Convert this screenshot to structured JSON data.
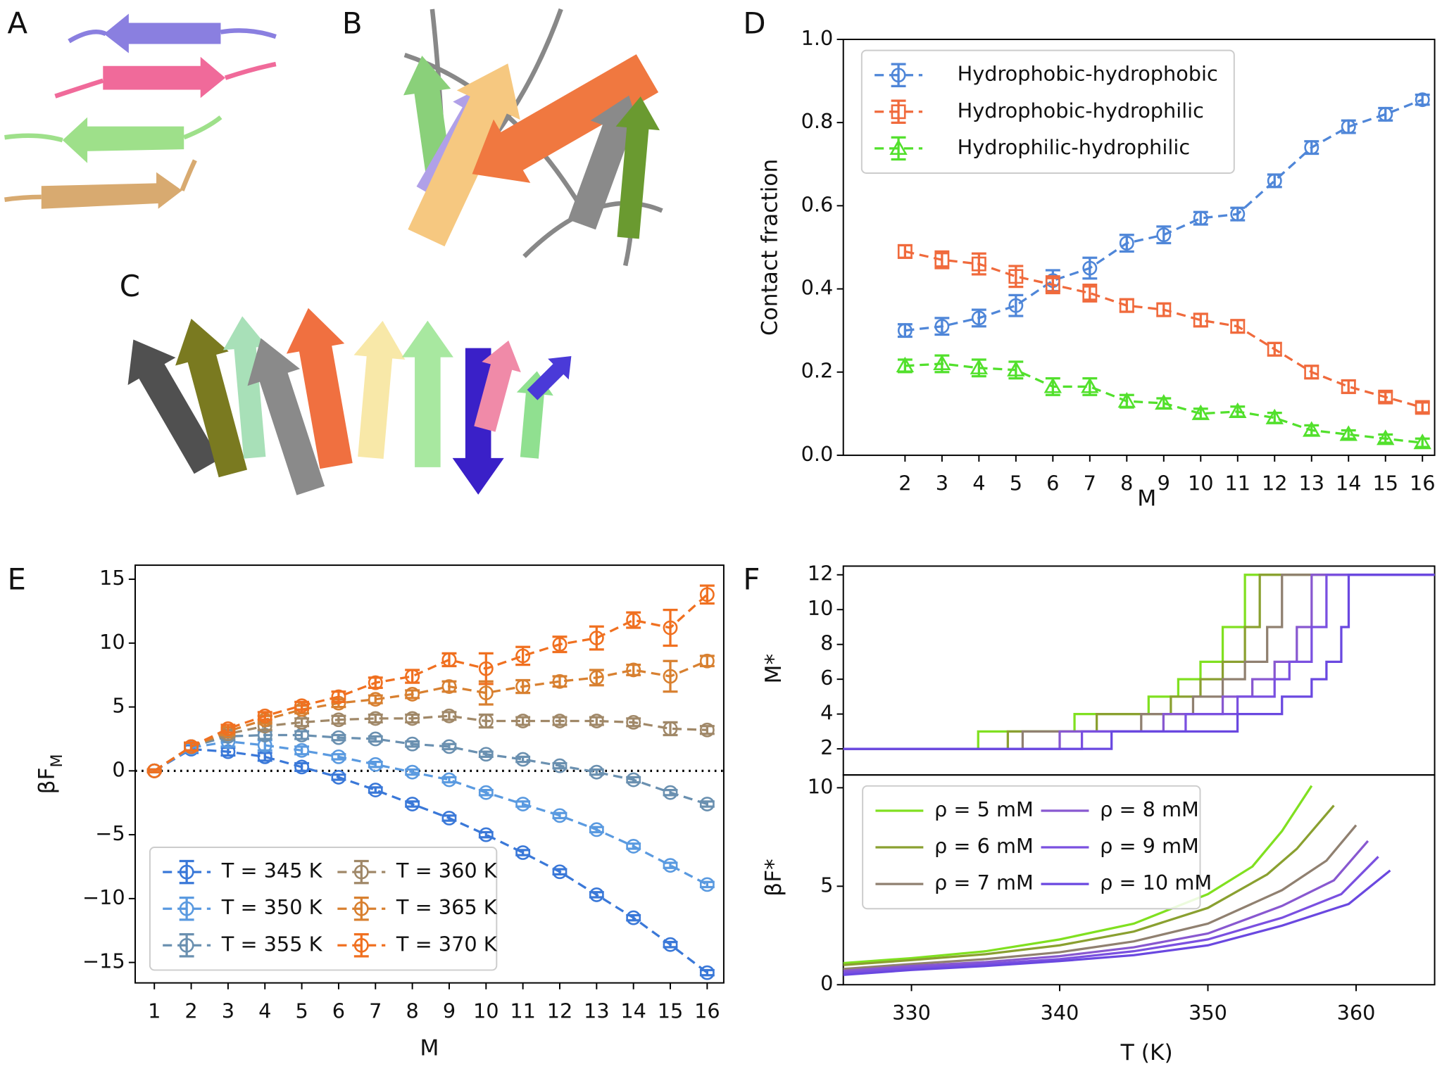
{
  "images": [
    {
      "panel": "A"
    },
    {
      "panel": "B"
    },
    {
      "panel": "C"
    }
  ],
  "chart_data": [
    {
      "type": "line",
      "panel": "D",
      "ylabel": "Contact fraction",
      "xlabel": "M",
      "x": [
        2,
        3,
        4,
        5,
        6,
        7,
        8,
        9,
        10,
        11,
        12,
        13,
        14,
        15,
        16
      ],
      "xlim": [
        0.33,
        16.33
      ],
      "xticks": [
        2,
        3,
        4,
        5,
        6,
        7,
        8,
        9,
        10,
        11,
        12,
        13,
        14,
        15,
        16
      ],
      "ylim": [
        0,
        1
      ],
      "yticks": [
        {
          "value": 0,
          "label": "0.0"
        },
        0.2,
        0.4,
        0.6,
        0.8,
        {
          "value": 1,
          "label": "1.0"
        }
      ],
      "legend": "upper left",
      "legend_columns": 1,
      "linestyle": "dashed",
      "series": [
        {
          "name": "Hydrophobic-hydrophobic",
          "color": "#4f86d8",
          "marker": "circle",
          "values": [
            0.3,
            0.31,
            0.33,
            0.36,
            0.42,
            0.45,
            0.51,
            0.53,
            0.57,
            0.58,
            0.66,
            0.74,
            0.79,
            0.82,
            0.855
          ],
          "errors": [
            0.015,
            0.02,
            0.02,
            0.025,
            0.025,
            0.025,
            0.02,
            0.02,
            0.015,
            0.015,
            0.015,
            0.015,
            0.015,
            0.015,
            0.012
          ]
        },
        {
          "name": "Hydrophobic-hydrophilic",
          "color": "#f06a3c",
          "marker": "square",
          "values": [
            0.49,
            0.47,
            0.46,
            0.43,
            0.41,
            0.39,
            0.36,
            0.35,
            0.325,
            0.31,
            0.255,
            0.2,
            0.165,
            0.14,
            0.115
          ],
          "errors": [
            0.015,
            0.02,
            0.025,
            0.025,
            0.02,
            0.02,
            0.015,
            0.015,
            0.015,
            0.015,
            0.015,
            0.015,
            0.015,
            0.012,
            0.012
          ]
        },
        {
          "name": "Hydrophilic-hydrophilic",
          "color": "#52e02c",
          "marker": "triangle",
          "values": [
            0.215,
            0.22,
            0.21,
            0.205,
            0.165,
            0.165,
            0.13,
            0.125,
            0.1,
            0.105,
            0.09,
            0.06,
            0.05,
            0.04,
            0.03
          ],
          "errors": [
            0.015,
            0.02,
            0.02,
            0.02,
            0.02,
            0.02,
            0.015,
            0.012,
            0.012,
            0.012,
            0.012,
            0.012,
            0.01,
            0.01,
            0.01
          ]
        }
      ]
    },
    {
      "type": "line",
      "panel": "E",
      "ylabel": "βF",
      "ylabel_subscript": "M",
      "xlabel": "M",
      "x": [
        1,
        2,
        3,
        4,
        5,
        6,
        7,
        8,
        9,
        10,
        11,
        12,
        13,
        14,
        15,
        16
      ],
      "xlim": [
        0.48,
        16.45
      ],
      "xticks": [
        1,
        2,
        3,
        4,
        5,
        6,
        7,
        8,
        9,
        10,
        11,
        12,
        13,
        14,
        15,
        16
      ],
      "ylim": [
        -16.6,
        16.1
      ],
      "yticks": [
        {
          "value": -15,
          "label": "−15"
        },
        {
          "value": -10,
          "label": "−10"
        },
        {
          "value": -5,
          "label": "−5"
        },
        0,
        5,
        10,
        15
      ],
      "reference_line": 0,
      "legend": "lower left",
      "legend_columns": 2,
      "linestyle": "dashed",
      "series": [
        {
          "name": "T = 345 K",
          "color": "#3a78d8",
          "marker": "circle",
          "values": [
            0,
            1.7,
            1.5,
            1.1,
            0.3,
            -0.5,
            -1.5,
            -2.6,
            -3.7,
            -5.0,
            -6.4,
            -7.9,
            -9.7,
            -11.5,
            -13.6,
            -15.8
          ],
          "errors": [
            0.1,
            0.3,
            0.3,
            0.3,
            0.3,
            0.2,
            0.2,
            0.2,
            0.2,
            0.2,
            0.2,
            0.2,
            0.2,
            0.2,
            0.2,
            0.2
          ]
        },
        {
          "name": "T = 350 K",
          "color": "#5a9ae0",
          "marker": "circle",
          "values": [
            0,
            1.8,
            2.3,
            2.0,
            1.6,
            1.1,
            0.5,
            -0.1,
            -0.7,
            -1.7,
            -2.6,
            -3.5,
            -4.6,
            -5.9,
            -7.4,
            -8.9
          ],
          "errors": [
            0.1,
            0.3,
            0.4,
            0.4,
            0.3,
            0.2,
            0.2,
            0.2,
            0.2,
            0.2,
            0.2,
            0.2,
            0.2,
            0.2,
            0.2,
            0.2
          ]
        },
        {
          "name": "T = 355 K",
          "color": "#6a90b0",
          "marker": "circle",
          "values": [
            0,
            1.9,
            2.7,
            2.8,
            2.8,
            2.6,
            2.5,
            2.1,
            1.9,
            1.3,
            0.9,
            0.4,
            -0.1,
            -0.7,
            -1.7,
            -2.6
          ],
          "errors": [
            0.1,
            0.3,
            0.3,
            0.3,
            0.3,
            0.2,
            0.2,
            0.2,
            0.2,
            0.2,
            0.2,
            0.2,
            0.2,
            0.2,
            0.2,
            0.2
          ]
        },
        {
          "name": "T = 360 K",
          "color": "#a08868",
          "marker": "circle",
          "values": [
            0,
            1.9,
            2.9,
            3.5,
            3.8,
            4.0,
            4.1,
            4.1,
            4.3,
            3.9,
            3.9,
            3.9,
            3.9,
            3.8,
            3.3,
            3.2
          ],
          "errors": [
            0.1,
            0.3,
            0.3,
            0.3,
            0.3,
            0.3,
            0.3,
            0.3,
            0.3,
            0.5,
            0.3,
            0.3,
            0.3,
            0.3,
            0.5,
            0.3
          ]
        },
        {
          "name": "T = 365 K",
          "color": "#d88030",
          "marker": "circle",
          "values": [
            0,
            1.9,
            3.1,
            4.0,
            4.8,
            5.3,
            5.6,
            6.0,
            6.6,
            6.1,
            6.6,
            7.0,
            7.3,
            7.9,
            7.4,
            8.6
          ],
          "errors": [
            0.1,
            0.3,
            0.3,
            0.3,
            0.3,
            0.3,
            0.3,
            0.3,
            0.4,
            0.9,
            0.5,
            0.4,
            0.6,
            0.4,
            1.2,
            0.4
          ]
        },
        {
          "name": "T = 370 K",
          "color": "#f07020",
          "marker": "circle",
          "values": [
            0,
            1.9,
            3.3,
            4.3,
            5.1,
            5.8,
            6.9,
            7.4,
            8.7,
            8.0,
            9.0,
            9.9,
            10.4,
            11.8,
            11.2,
            13.8
          ],
          "errors": [
            0.1,
            0.3,
            0.3,
            0.3,
            0.3,
            0.4,
            0.4,
            0.5,
            0.5,
            1.2,
            0.7,
            0.6,
            0.9,
            0.6,
            1.4,
            0.7
          ]
        }
      ]
    },
    {
      "type": "line",
      "panel": "F",
      "ylabel": "M*",
      "step": true,
      "xlim": [
        325.4,
        365.3
      ],
      "ylim": [
        0.5,
        12.5
      ],
      "yticks": [
        2,
        4,
        6,
        8,
        10,
        12
      ],
      "series": [
        {
          "name": "ρ = 5 mM",
          "color": "#80e020",
          "x": [
            325.4,
            334.5,
            341,
            346,
            348,
            349.5,
            351,
            352.5,
            365.3
          ],
          "values": [
            2,
            3,
            4,
            5,
            6,
            7,
            9,
            12,
            12
          ]
        },
        {
          "name": "ρ = 6 mM",
          "color": "#8aa030",
          "x": [
            325.4,
            336.5,
            342.5,
            347.5,
            349.5,
            351,
            352.5,
            353.5,
            365.3
          ],
          "values": [
            2,
            3,
            4,
            5,
            6,
            7,
            9,
            12,
            12
          ]
        },
        {
          "name": "ρ = 7 mM",
          "color": "#908070",
          "x": [
            325.4,
            337.5,
            345.5,
            349,
            351,
            352.5,
            354,
            355,
            365.3
          ],
          "values": [
            2,
            3,
            4,
            5,
            6,
            7,
            9,
            12,
            12
          ]
        },
        {
          "name": "ρ = 8 mM",
          "color": "#8858d0",
          "x": [
            325.4,
            340,
            347,
            351,
            353,
            354.5,
            356,
            357,
            365.3
          ],
          "values": [
            2,
            3,
            4,
            5,
            6,
            7,
            9,
            12,
            12
          ]
        },
        {
          "name": "ρ = 9 mM",
          "color": "#7a50e0",
          "x": [
            325.4,
            341.5,
            348.5,
            352,
            354.5,
            355.5,
            357,
            358,
            365.3
          ],
          "values": [
            2,
            3,
            4,
            5,
            6,
            7,
            9,
            12,
            12
          ]
        },
        {
          "name": "ρ = 10 mM",
          "color": "#6a48e0",
          "x": [
            325.4,
            343.5,
            352,
            355,
            357,
            358,
            359,
            359.5,
            365.3
          ],
          "values": [
            2,
            3,
            4,
            5,
            6,
            7,
            9,
            12,
            12
          ]
        }
      ]
    },
    {
      "type": "line",
      "ylabel": "βF*",
      "xlabel": "T (K)",
      "xlim": [
        325.4,
        365.3
      ],
      "xticks": [
        330,
        340,
        350,
        360
      ],
      "ylim": [
        0,
        10.65
      ],
      "yticks": [
        0,
        5,
        10
      ],
      "legend": "upper left",
      "legend_columns": 2,
      "series": [
        {
          "name": "ρ = 5 mM",
          "color": "#80e020",
          "x": [
            325.4,
            330,
            335,
            340,
            345,
            350,
            353,
            355,
            357
          ],
          "values": [
            1.1,
            1.35,
            1.7,
            2.3,
            3.1,
            4.6,
            6.0,
            7.8,
            10.1
          ]
        },
        {
          "name": "ρ = 6 mM",
          "color": "#8aa030",
          "x": [
            325.4,
            330,
            335,
            340,
            345,
            350,
            354,
            356,
            358.5
          ],
          "values": [
            1.0,
            1.25,
            1.55,
            2.0,
            2.7,
            3.9,
            5.6,
            6.9,
            9.1
          ]
        },
        {
          "name": "ρ = 7 mM",
          "color": "#908070",
          "x": [
            325.4,
            330,
            335,
            340,
            345,
            350,
            355,
            358,
            360
          ],
          "values": [
            0.8,
            1.05,
            1.3,
            1.65,
            2.2,
            3.1,
            4.8,
            6.3,
            8.1
          ]
        },
        {
          "name": "ρ = 8 mM",
          "color": "#8858d0",
          "x": [
            325.4,
            330,
            335,
            340,
            345,
            350,
            355,
            358.5,
            360.8
          ],
          "values": [
            0.7,
            0.95,
            1.15,
            1.45,
            1.9,
            2.6,
            4.0,
            5.3,
            7.3
          ]
        },
        {
          "name": "ρ = 9 mM",
          "color": "#7a50e0",
          "x": [
            325.4,
            330,
            335,
            340,
            345,
            350,
            355,
            359,
            361.5
          ],
          "values": [
            0.6,
            0.85,
            1.05,
            1.3,
            1.7,
            2.3,
            3.4,
            4.6,
            6.5
          ]
        },
        {
          "name": "ρ = 10 mM",
          "color": "#6a48e0",
          "x": [
            325.4,
            330,
            335,
            340,
            345,
            350,
            355,
            359.5,
            362.3
          ],
          "values": [
            0.5,
            0.75,
            0.95,
            1.2,
            1.5,
            2.0,
            3.0,
            4.1,
            5.8
          ]
        }
      ]
    }
  ]
}
